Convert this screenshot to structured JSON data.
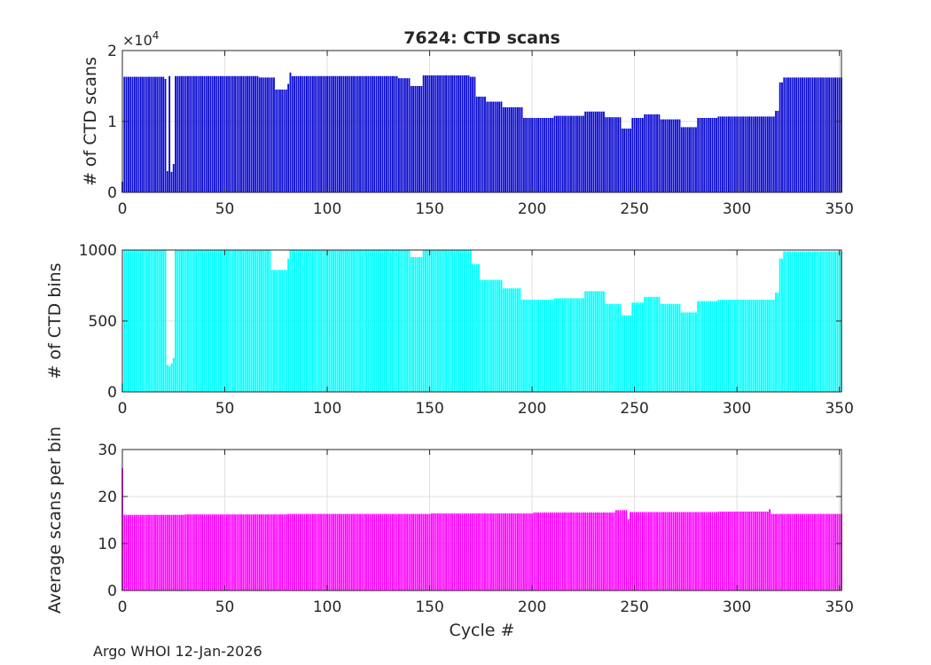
{
  "figure": {
    "title": "7624: CTD scans",
    "footer": "Argo WHOI 12-Jan-2026",
    "xlabel": "Cycle #"
  },
  "colors": {
    "scans": "#0a0ad0",
    "bins": "#00ffff",
    "average": "#ff00ff",
    "axis": "#262626",
    "grid": "#dfdfdf"
  },
  "chart_data": [
    {
      "type": "bar",
      "title": "7624: CTD scans",
      "xlabel": "",
      "ylabel": "# of CTD scans",
      "exponent_label": "×10",
      "exponent_power": "4",
      "xlim": [
        0,
        351
      ],
      "ylim": [
        0,
        20000
      ],
      "xticks": [
        0,
        50,
        100,
        150,
        200,
        250,
        300,
        350
      ],
      "xtick_labels": [
        "0",
        "50",
        "100",
        "150",
        "200",
        "250",
        "300",
        "350"
      ],
      "yticks": [
        0,
        10000,
        20000
      ],
      "ytick_labels": [
        "0",
        "1",
        "2"
      ],
      "grid": true,
      "segments": [
        {
          "from": 0,
          "to": 0,
          "value": 1500
        },
        {
          "from": 1,
          "to": 20,
          "value": 16300
        },
        {
          "from": 21,
          "to": 21,
          "value": 16000
        },
        {
          "from": 22,
          "to": 22,
          "value": 3000
        },
        {
          "from": 23,
          "to": 23,
          "value": 16400
        },
        {
          "from": 24,
          "to": 24,
          "value": 2900
        },
        {
          "from": 25,
          "to": 25,
          "value": 4000
        },
        {
          "from": 26,
          "to": 66,
          "value": 16400
        },
        {
          "from": 67,
          "to": 74,
          "value": 16200
        },
        {
          "from": 75,
          "to": 80,
          "value": 14500
        },
        {
          "from": 81,
          "to": 81,
          "value": 15300
        },
        {
          "from": 82,
          "to": 82,
          "value": 16900
        },
        {
          "from": 83,
          "to": 134,
          "value": 16400
        },
        {
          "from": 135,
          "to": 140,
          "value": 16100
        },
        {
          "from": 141,
          "to": 146,
          "value": 15000
        },
        {
          "from": 147,
          "to": 169,
          "value": 16500
        },
        {
          "from": 170,
          "to": 172,
          "value": 16300
        },
        {
          "from": 173,
          "to": 177,
          "value": 13500
        },
        {
          "from": 178,
          "to": 185,
          "value": 12800
        },
        {
          "from": 186,
          "to": 195,
          "value": 12000
        },
        {
          "from": 196,
          "to": 210,
          "value": 10500
        },
        {
          "from": 211,
          "to": 225,
          "value": 10800
        },
        {
          "from": 226,
          "to": 235,
          "value": 11400
        },
        {
          "from": 236,
          "to": 243,
          "value": 10600
        },
        {
          "from": 244,
          "to": 248,
          "value": 9000
        },
        {
          "from": 249,
          "to": 254,
          "value": 10500
        },
        {
          "from": 255,
          "to": 262,
          "value": 11000
        },
        {
          "from": 263,
          "to": 272,
          "value": 10300
        },
        {
          "from": 273,
          "to": 280,
          "value": 9200
        },
        {
          "from": 281,
          "to": 290,
          "value": 10500
        },
        {
          "from": 291,
          "to": 318,
          "value": 10700
        },
        {
          "from": 319,
          "to": 320,
          "value": 11500
        },
        {
          "from": 321,
          "to": 322,
          "value": 15500
        },
        {
          "from": 323,
          "to": 351,
          "value": 16200
        }
      ]
    },
    {
      "type": "bar",
      "title": "",
      "xlabel": "",
      "ylabel": "# of CTD bins",
      "xlim": [
        0,
        351
      ],
      "ylim": [
        0,
        1000
      ],
      "xticks": [
        0,
        50,
        100,
        150,
        200,
        250,
        300,
        350
      ],
      "xtick_labels": [
        "0",
        "50",
        "100",
        "150",
        "200",
        "250",
        "300",
        "350"
      ],
      "yticks": [
        0,
        500,
        1000
      ],
      "ytick_labels": [
        "0",
        "500",
        "1000"
      ],
      "grid": true,
      "segments": [
        {
          "from": 0,
          "to": 0,
          "value": 60
        },
        {
          "from": 1,
          "to": 20,
          "value": 1000
        },
        {
          "from": 21,
          "to": 21,
          "value": 1000
        },
        {
          "from": 22,
          "to": 22,
          "value": 190
        },
        {
          "from": 23,
          "to": 23,
          "value": 180
        },
        {
          "from": 24,
          "to": 24,
          "value": 200
        },
        {
          "from": 25,
          "to": 25,
          "value": 240
        },
        {
          "from": 26,
          "to": 72,
          "value": 1000
        },
        {
          "from": 73,
          "to": 80,
          "value": 860
        },
        {
          "from": 81,
          "to": 81,
          "value": 940
        },
        {
          "from": 82,
          "to": 140,
          "value": 1000
        },
        {
          "from": 141,
          "to": 146,
          "value": 950
        },
        {
          "from": 147,
          "to": 170,
          "value": 1000
        },
        {
          "from": 171,
          "to": 174,
          "value": 900
        },
        {
          "from": 175,
          "to": 185,
          "value": 790
        },
        {
          "from": 186,
          "to": 194,
          "value": 730
        },
        {
          "from": 195,
          "to": 210,
          "value": 650
        },
        {
          "from": 211,
          "to": 225,
          "value": 660
        },
        {
          "from": 226,
          "to": 235,
          "value": 710
        },
        {
          "from": 236,
          "to": 243,
          "value": 620
        },
        {
          "from": 244,
          "to": 248,
          "value": 540
        },
        {
          "from": 249,
          "to": 254,
          "value": 630
        },
        {
          "from": 255,
          "to": 262,
          "value": 670
        },
        {
          "from": 263,
          "to": 272,
          "value": 620
        },
        {
          "from": 273,
          "to": 280,
          "value": 560
        },
        {
          "from": 281,
          "to": 290,
          "value": 640
        },
        {
          "from": 291,
          "to": 318,
          "value": 650
        },
        {
          "from": 319,
          "to": 320,
          "value": 700
        },
        {
          "from": 321,
          "to": 322,
          "value": 940
        },
        {
          "from": 323,
          "to": 351,
          "value": 990
        }
      ]
    },
    {
      "type": "bar",
      "title": "",
      "xlabel": "Cycle #",
      "ylabel": "Average scans per bin",
      "xlim": [
        0,
        351
      ],
      "ylim": [
        0,
        30
      ],
      "xticks": [
        0,
        50,
        100,
        150,
        200,
        250,
        300,
        350
      ],
      "xtick_labels": [
        "0",
        "50",
        "100",
        "150",
        "200",
        "250",
        "300",
        "350"
      ],
      "yticks": [
        0,
        10,
        20,
        30
      ],
      "ytick_labels": [
        "0",
        "10",
        "20",
        "30"
      ],
      "grid": true,
      "segments": [
        {
          "from": 0,
          "to": 0,
          "value": 26
        },
        {
          "from": 1,
          "to": 30,
          "value": 16.1
        },
        {
          "from": 31,
          "to": 80,
          "value": 16.2
        },
        {
          "from": 81,
          "to": 150,
          "value": 16.3
        },
        {
          "from": 151,
          "to": 200,
          "value": 16.4
        },
        {
          "from": 201,
          "to": 240,
          "value": 16.6
        },
        {
          "from": 241,
          "to": 246,
          "value": 17.1
        },
        {
          "from": 247,
          "to": 247,
          "value": 15.2
        },
        {
          "from": 248,
          "to": 290,
          "value": 16.7
        },
        {
          "from": 291,
          "to": 315,
          "value": 16.8
        },
        {
          "from": 316,
          "to": 316,
          "value": 17.3
        },
        {
          "from": 317,
          "to": 351,
          "value": 16.3
        }
      ]
    }
  ]
}
